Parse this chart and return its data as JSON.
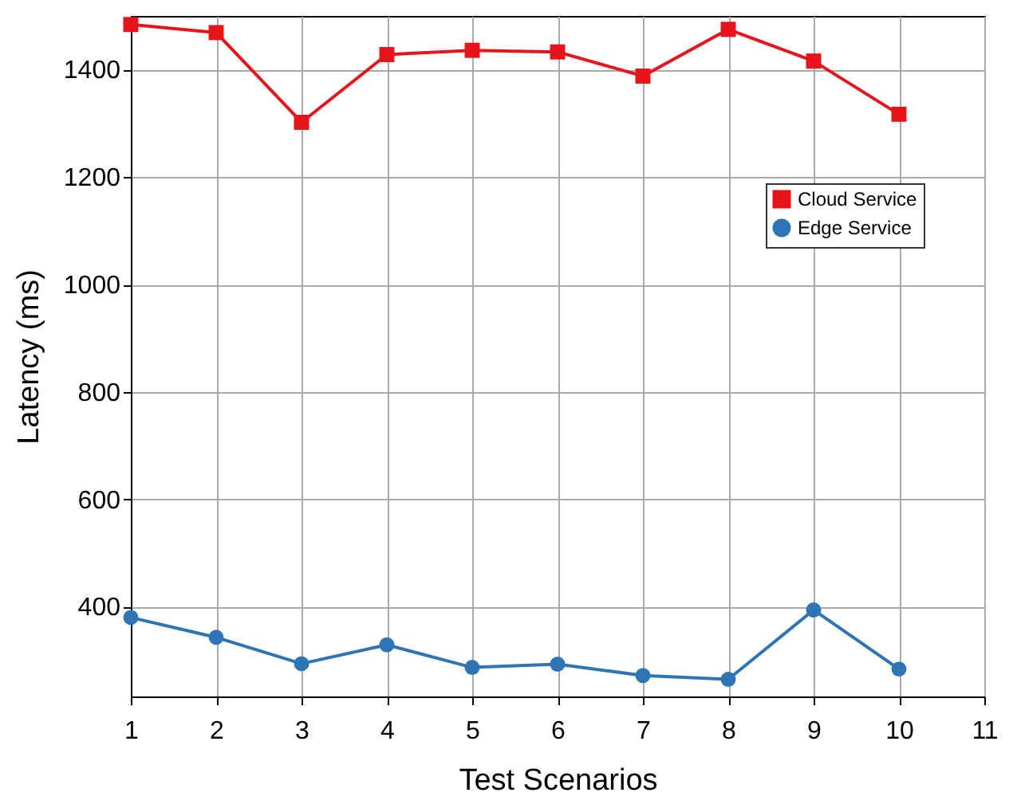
{
  "chart_data": {
    "type": "line",
    "xlabel": "Test Scenarios",
    "ylabel": "Latency (ms)",
    "x": [
      1,
      2,
      3,
      4,
      5,
      6,
      7,
      8,
      9,
      10
    ],
    "series": [
      {
        "name": "Cloud Service",
        "color": "#e8141c",
        "marker": "square",
        "values": [
          1484,
          1469,
          1302,
          1428,
          1436,
          1433,
          1388,
          1475,
          1416,
          1317
        ]
      },
      {
        "name": "Edge Service",
        "color": "#2e75b6",
        "marker": "circle",
        "values": [
          380,
          343,
          294,
          329,
          287,
          293,
          272,
          265,
          394,
          284
        ]
      }
    ],
    "xlim": [
      1,
      11
    ],
    "xticks": [
      1,
      2,
      3,
      4,
      5,
      6,
      7,
      8,
      9,
      10,
      11
    ],
    "ylim": [
      233,
      1500
    ],
    "yticks": [
      400,
      600,
      800,
      1000,
      1200,
      1400
    ],
    "grid": true,
    "legend": "top right",
    "line_style": "solid"
  }
}
